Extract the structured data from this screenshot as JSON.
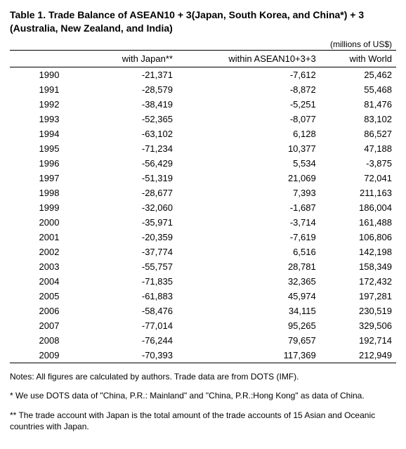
{
  "title_line1": "Table 1. Trade Balance of ASEAN10 + 3(Japan, South Korea, and China*) + 3",
  "title_line2": "(Australia, New Zealand, and India)",
  "units": "(millions of US$)",
  "columns": [
    "",
    "with Japan**",
    "within ASEAN10+3+3",
    "with World"
  ],
  "rows": [
    {
      "year": "1990",
      "japan": "-21,371",
      "asean": "-7,612",
      "world": "25,462"
    },
    {
      "year": "1991",
      "japan": "-28,579",
      "asean": "-8,872",
      "world": "55,468"
    },
    {
      "year": "1992",
      "japan": "-38,419",
      "asean": "-5,251",
      "world": "81,476"
    },
    {
      "year": "1993",
      "japan": "-52,365",
      "asean": "-8,077",
      "world": "83,102"
    },
    {
      "year": "1994",
      "japan": "-63,102",
      "asean": "6,128",
      "world": "86,527"
    },
    {
      "year": "1995",
      "japan": "-71,234",
      "asean": "10,377",
      "world": "47,188"
    },
    {
      "year": "1996",
      "japan": "-56,429",
      "asean": "5,534",
      "world": "-3,875"
    },
    {
      "year": "1997",
      "japan": "-51,319",
      "asean": "21,069",
      "world": "72,041"
    },
    {
      "year": "1998",
      "japan": "-28,677",
      "asean": "7,393",
      "world": "211,163"
    },
    {
      "year": "1999",
      "japan": "-32,060",
      "asean": "-1,687",
      "world": "186,004"
    },
    {
      "year": "2000",
      "japan": "-35,971",
      "asean": "-3,714",
      "world": "161,488"
    },
    {
      "year": "2001",
      "japan": "-20,359",
      "asean": "-7,619",
      "world": "106,806"
    },
    {
      "year": "2002",
      "japan": "-37,774",
      "asean": "6,516",
      "world": "142,198"
    },
    {
      "year": "2003",
      "japan": "-55,757",
      "asean": "28,781",
      "world": "158,349"
    },
    {
      "year": "2004",
      "japan": "-71,835",
      "asean": "32,365",
      "world": "172,432"
    },
    {
      "year": "2005",
      "japan": "-61,883",
      "asean": "45,974",
      "world": "197,281"
    },
    {
      "year": "2006",
      "japan": "-58,476",
      "asean": "34,115",
      "world": "230,519"
    },
    {
      "year": "2007",
      "japan": "-77,014",
      "asean": "95,265",
      "world": "329,506"
    },
    {
      "year": "2008",
      "japan": "-76,244",
      "asean": "79,657",
      "world": "192,714"
    },
    {
      "year": "2009",
      "japan": "-70,393",
      "asean": "117,369",
      "world": "212,949"
    }
  ],
  "notes": [
    "Notes:  All figures are calculated by authors. Trade data are from DOTS (IMF).",
    "* We use DOTS data of \"China, P.R.: Mainland\" and \"China, P.R.:Hong Kong\" as data of China.",
    "** The trade account with Japan is the total amount of the trade accounts of 15 Asian and Oceanic countries with Japan."
  ]
}
